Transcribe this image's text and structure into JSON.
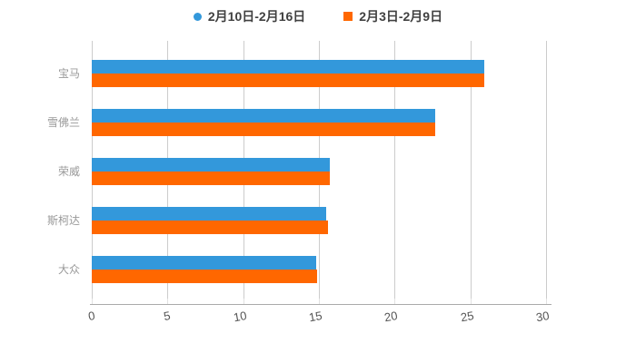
{
  "legend": {
    "items": [
      {
        "label": "2月10日-2月16日",
        "marker": "circle",
        "color": "#3398DB"
      },
      {
        "label": "2月3日-2月9日",
        "marker": "square",
        "color": "#FF6700"
      }
    ]
  },
  "chart_data": {
    "type": "bar",
    "orientation": "horizontal",
    "title": "",
    "categories": [
      "宝马",
      "雪佛兰",
      "荣威",
      "斯柯达",
      "大众"
    ],
    "series": [
      {
        "name": "2月10日-2月16日",
        "color": "#3398DB",
        "values": [
          25.9,
          22.7,
          15.7,
          15.5,
          14.8
        ]
      },
      {
        "name": "2月3日-2月9日",
        "color": "#FF6700",
        "values": [
          25.9,
          22.7,
          15.7,
          15.6,
          14.9
        ]
      }
    ],
    "xlabel": "",
    "ylabel": "",
    "xlim": [
      0,
      30
    ],
    "x_ticks": [
      0,
      5,
      10,
      15,
      20,
      25,
      30
    ],
    "grid": true,
    "legend_position": "top",
    "colors": {
      "gridline": "#cccccc",
      "axis_line": "#aaaaaa",
      "x_tick_label": "#555555",
      "category_label": "#999999",
      "legend_text": "#404040"
    }
  }
}
